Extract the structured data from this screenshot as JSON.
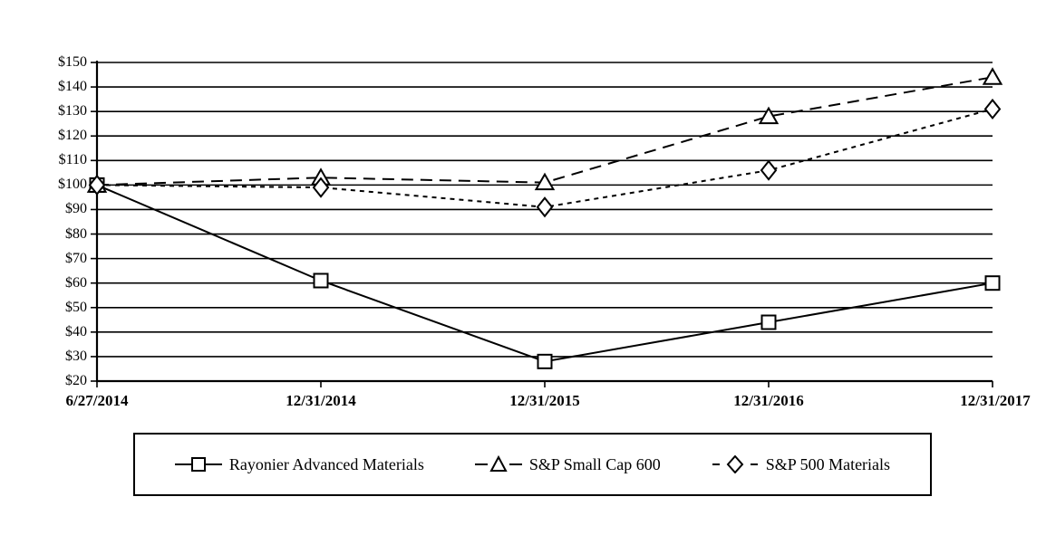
{
  "chart_data": {
    "type": "line",
    "title": "",
    "categories": [
      "6/27/2014",
      "12/31/2014",
      "12/31/2015",
      "12/31/2016",
      "12/31/2017"
    ],
    "series": [
      {
        "name": "Rayonier Advanced Materials",
        "marker": "square",
        "dash": "solid",
        "values": [
          100,
          61,
          28,
          44,
          60
        ]
      },
      {
        "name": "S&P Small Cap 600",
        "marker": "triangle",
        "dash": "long-dash",
        "values": [
          100,
          103,
          101,
          128,
          144
        ]
      },
      {
        "name": "S&P 500 Materials",
        "marker": "diamond",
        "dash": "short-dash",
        "values": [
          100,
          99,
          91,
          106,
          131
        ]
      }
    ],
    "ylim": [
      20,
      150
    ],
    "ytick_step": 10,
    "ytick_prefix": "$",
    "yticks": [
      150,
      140,
      130,
      120,
      110,
      100,
      90,
      80,
      70,
      60,
      50,
      40,
      30,
      20
    ],
    "ytick_labels": [
      "$150",
      "$140",
      "$130",
      "$120",
      "$110",
      "$100",
      "$90",
      "$80",
      "$70",
      "$60",
      "$50",
      "$40",
      "$30",
      "$20"
    ],
    "grid": "horizontal-solid",
    "legend_position": "bottom-box",
    "line_color": "#000000",
    "background": "#ffffff"
  }
}
